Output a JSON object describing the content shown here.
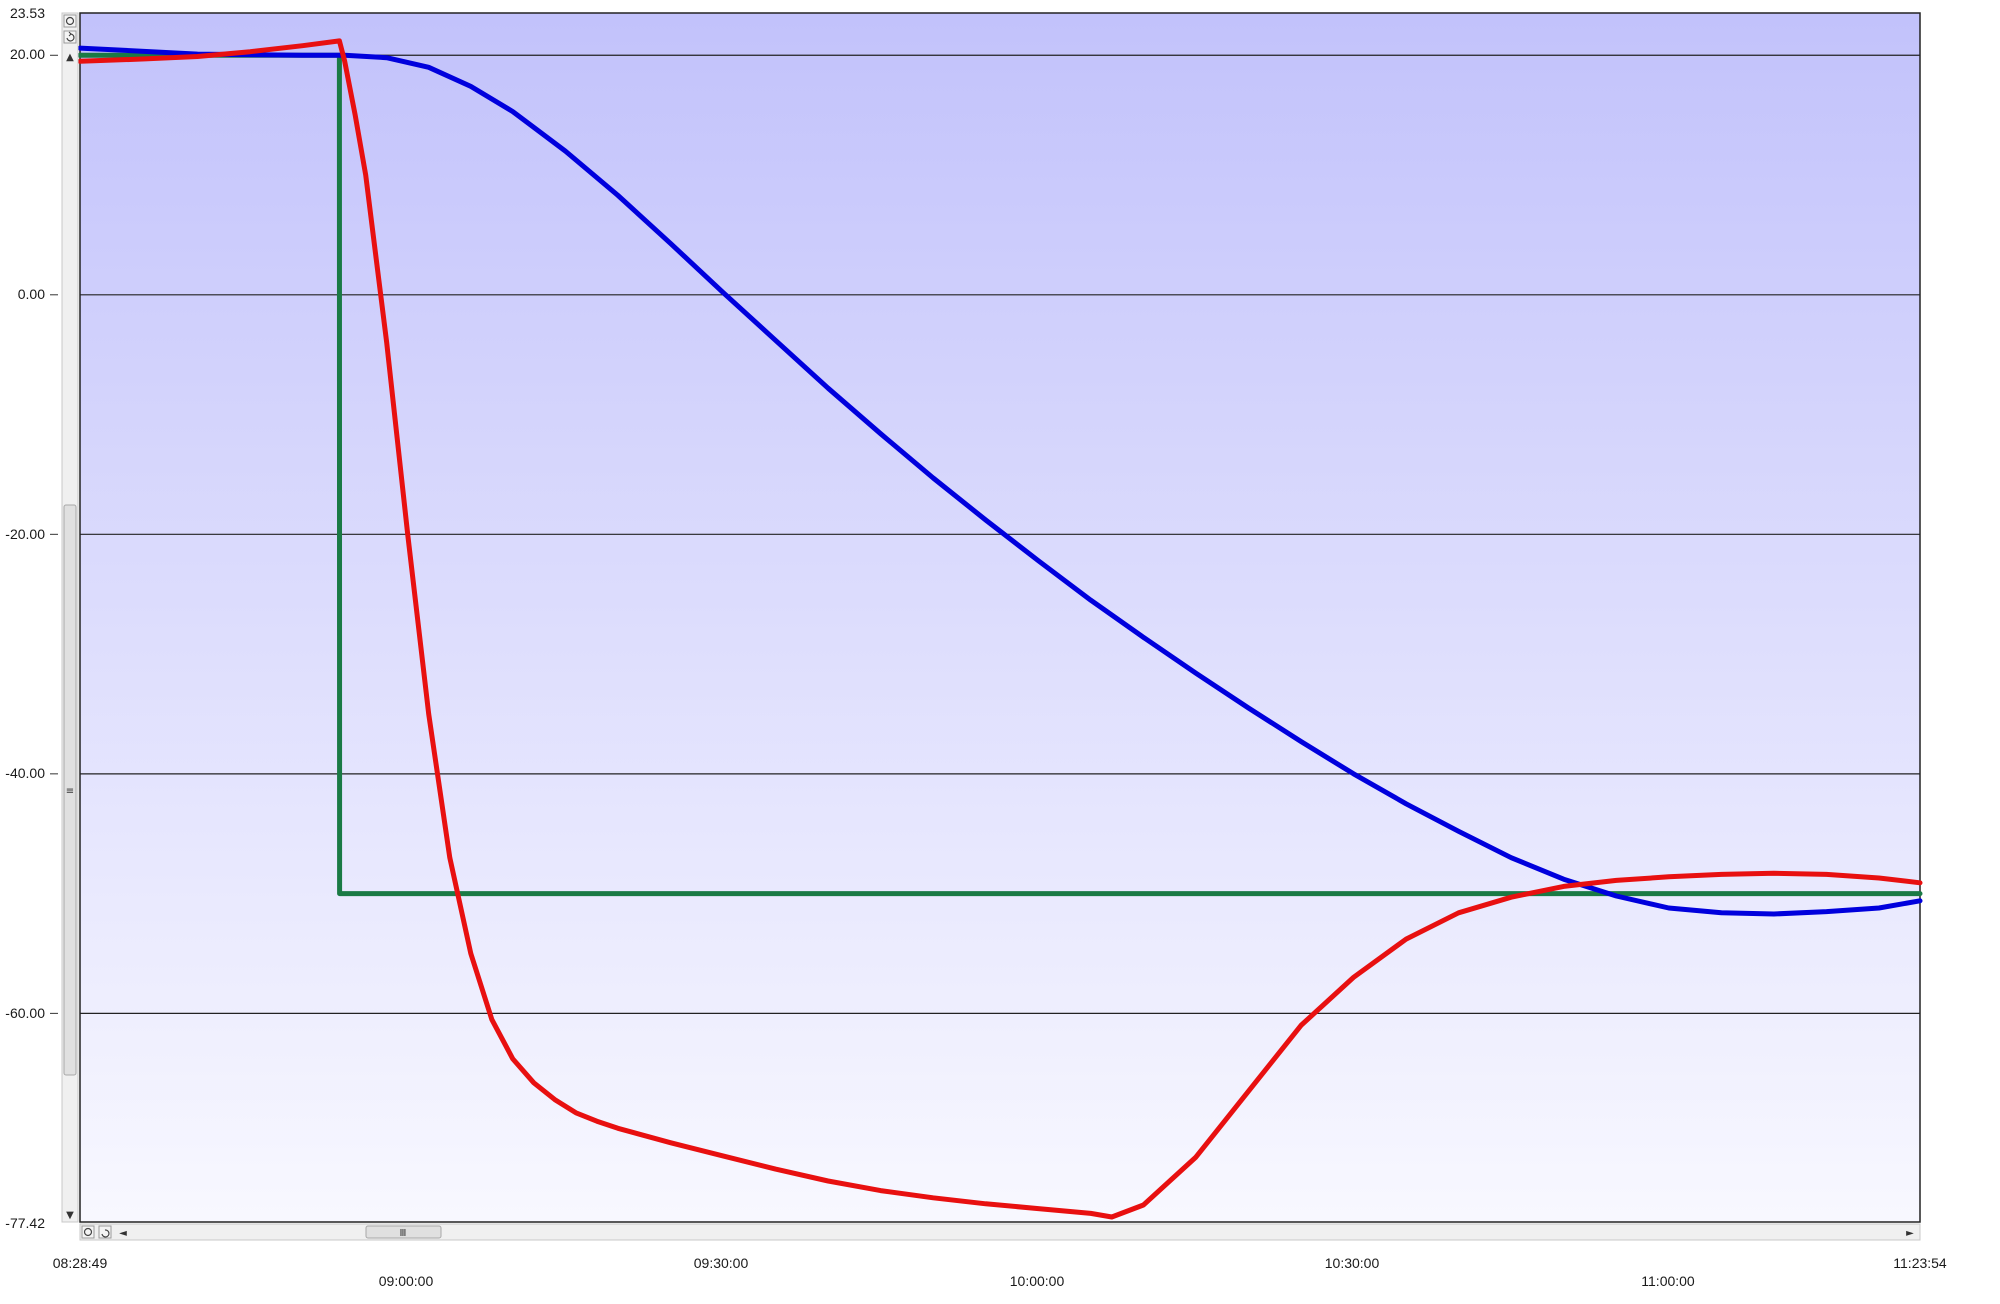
{
  "chart_data": {
    "type": "line",
    "title": "",
    "xlabel": "",
    "ylabel": "",
    "ylim": [
      -77.42,
      23.53
    ],
    "xlim": [
      "08:28:49",
      "11:23:54"
    ],
    "grid": true,
    "y_ticks": [
      20,
      0,
      -20,
      -40,
      -60
    ],
    "y_tick_labels": [
      "23.53",
      "20.00",
      "0.00",
      "-20.00",
      "-40.00",
      "-60.00",
      "-77.42"
    ],
    "x_tick_labels": [
      "08:28:49",
      "09:00:00",
      "09:30:00",
      "10:00:00",
      "10:30:00",
      "11:00:00",
      "11:23:54"
    ],
    "background_gradient": [
      "#c2c2fb",
      "#f8f8ff"
    ],
    "series": [
      {
        "color": "#1a7a45",
        "x": [
          "08:28:49",
          "08:53:30",
          "08:53:31",
          "11:23:54"
        ],
        "y": [
          20,
          20,
          -50,
          -50
        ]
      },
      {
        "color": "#0000dd",
        "x": [
          "08:28:49",
          "08:40:00",
          "08:50:00",
          "08:54:00",
          "08:58:00",
          "09:02:00",
          "09:06:00",
          "09:10:00",
          "09:15:00",
          "09:20:00",
          "09:25:00",
          "09:30:00",
          "09:35:00",
          "09:40:00",
          "09:45:00",
          "09:50:00",
          "09:55:00",
          "10:00:00",
          "10:05:00",
          "10:10:00",
          "10:15:00",
          "10:20:00",
          "10:25:00",
          "10:30:00",
          "10:35:00",
          "10:40:00",
          "10:45:00",
          "10:50:00",
          "10:55:00",
          "11:00:00",
          "11:05:00",
          "11:10:00",
          "11:15:00",
          "11:20:00",
          "11:23:54"
        ],
        "y": [
          20.6,
          20.1,
          20.0,
          20.0,
          19.8,
          19.0,
          17.4,
          15.3,
          12.0,
          8.3,
          4.3,
          0.2,
          -3.8,
          -7.8,
          -11.6,
          -15.3,
          -18.8,
          -22.2,
          -25.5,
          -28.6,
          -31.6,
          -34.5,
          -37.3,
          -40.0,
          -42.5,
          -44.8,
          -47.0,
          -48.8,
          -50.2,
          -51.2,
          -51.6,
          -51.7,
          -51.5,
          -51.2,
          -50.6
        ]
      },
      {
        "color": "#e81010",
        "x": [
          "08:28:49",
          "08:35:00",
          "08:40:00",
          "08:45:00",
          "08:50:00",
          "08:53:30",
          "08:54:00",
          "08:55:00",
          "08:56:00",
          "08:57:00",
          "08:58:00",
          "08:59:00",
          "09:00:00",
          "09:02:00",
          "09:04:00",
          "09:06:00",
          "09:08:00",
          "09:10:00",
          "09:12:00",
          "09:14:00",
          "09:16:00",
          "09:18:00",
          "09:20:00",
          "09:25:00",
          "09:30:00",
          "09:35:00",
          "09:40:00",
          "09:45:00",
          "09:50:00",
          "09:55:00",
          "10:00:00",
          "10:05:00",
          "10:07:00",
          "10:10:00",
          "10:15:00",
          "10:20:00",
          "10:25:00",
          "10:30:00",
          "10:35:00",
          "10:40:00",
          "10:45:00",
          "10:50:00",
          "10:55:00",
          "11:00:00",
          "11:05:00",
          "11:10:00",
          "11:15:00",
          "11:20:00",
          "11:23:54"
        ],
        "y": [
          19.5,
          19.7,
          19.9,
          20.3,
          20.8,
          21.2,
          19.5,
          15.0,
          10.0,
          3.0,
          -4.0,
          -12.0,
          -20.0,
          -35.0,
          -47.0,
          -55.0,
          -60.5,
          -63.8,
          -65.8,
          -67.2,
          -68.3,
          -69.0,
          -69.6,
          -70.8,
          -71.9,
          -73.0,
          -74.0,
          -74.8,
          -75.4,
          -75.9,
          -76.3,
          -76.7,
          -77.0,
          -76.0,
          -72.0,
          -66.5,
          -61.0,
          -57.0,
          -53.8,
          -51.6,
          -50.3,
          -49.4,
          -48.9,
          -48.6,
          -48.4,
          -48.3,
          -48.4,
          -48.7,
          -49.1
        ]
      }
    ]
  },
  "controls": {
    "v_top_btn_1": "zoom-reset",
    "v_top_btn_2": "zoom-undo",
    "h_left_btn_1": "zoom-reset",
    "h_left_btn_2": "zoom-undo",
    "v_grip": "≡",
    "h_grip": "Ⅲ",
    "arrow_up": "▲",
    "arrow_down": "▼",
    "arrow_left": "◄",
    "arrow_right": "►"
  }
}
